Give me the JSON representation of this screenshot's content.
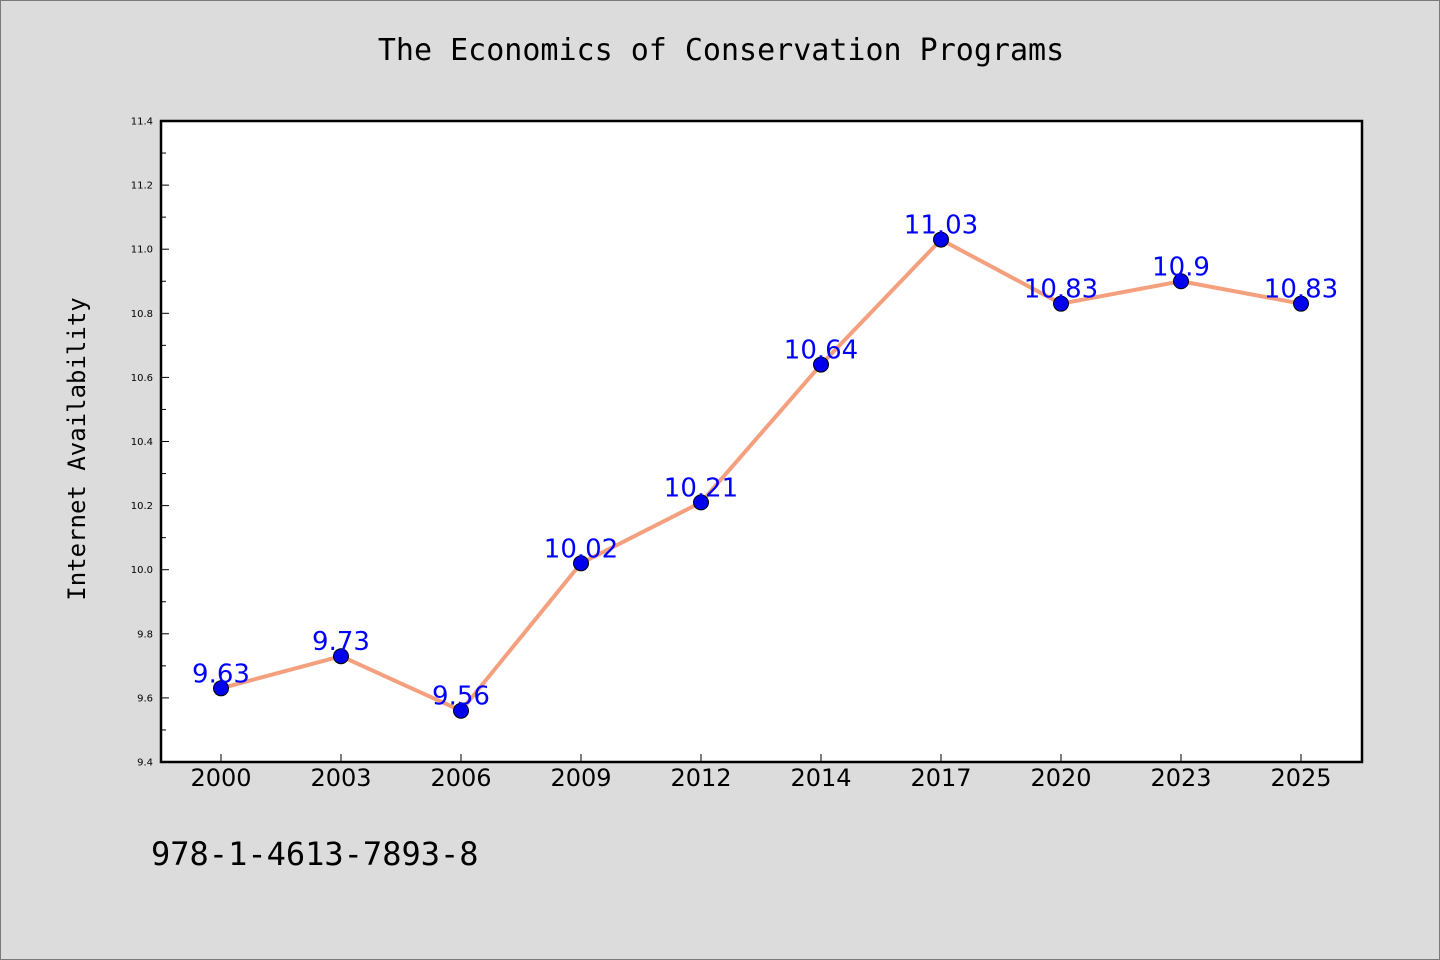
{
  "header": {
    "title": "The Economics of Conservation Programs"
  },
  "footer": {
    "code": "978-1-4613-7893-8"
  },
  "colors": {
    "background": "#dcdcdc",
    "plot_background": "#ffffff",
    "line": "#f4a07e",
    "marker": "#0000ee",
    "label": "#0000ff"
  },
  "chart_data": {
    "type": "line",
    "title": "The Economics of Conservation Programs",
    "xlabel": "",
    "ylabel": "Internet Availability",
    "categories": [
      "2000",
      "2003",
      "2006",
      "2009",
      "2012",
      "2014",
      "2017",
      "2020",
      "2023",
      "2025"
    ],
    "series": [
      {
        "values": [
          9.63,
          9.73,
          9.56,
          10.02,
          10.21,
          10.64,
          11.03,
          10.83,
          10.9,
          10.83
        ],
        "labels": [
          "9.63",
          "9.73",
          "9.56",
          "10.02",
          "10.21",
          "10.64",
          "11.03",
          "10.83",
          "10.9",
          "10.83"
        ]
      }
    ],
    "ylim": [
      9.4,
      11.4
    ],
    "yticks": [
      "9.4",
      "9.6",
      "9.8",
      "10.0",
      "10.2",
      "10.4",
      "10.6",
      "10.8",
      "11.0",
      "11.2",
      "11.4"
    ],
    "grid": false,
    "legend": "none",
    "markers": "filled circles",
    "data_labels": true
  }
}
